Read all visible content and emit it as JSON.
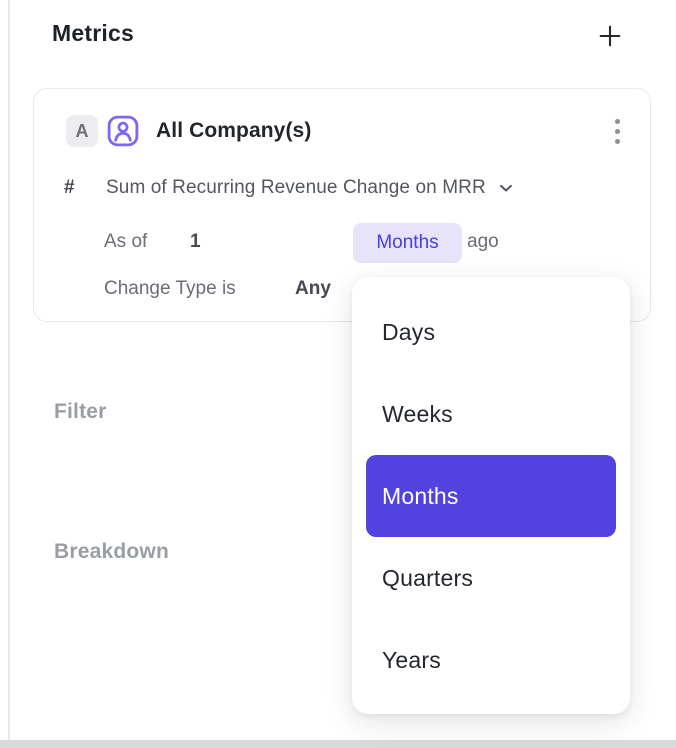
{
  "page": {
    "title": "Metrics",
    "add_button_label": "+"
  },
  "metric_card": {
    "badge": "A",
    "entity": "All Company(s)",
    "metric_type_symbol": "#",
    "metric_label": "Sum of Recurring Revenue Change on MRR",
    "as_of": {
      "prefix": "As of",
      "value": "1",
      "unit": "Months",
      "suffix": "ago"
    },
    "change_type": {
      "label": "Change Type is",
      "value": "Any"
    }
  },
  "unit_dropdown": {
    "options": [
      {
        "label": "Days",
        "selected": false
      },
      {
        "label": "Weeks",
        "selected": false
      },
      {
        "label": "Months",
        "selected": true
      },
      {
        "label": "Quarters",
        "selected": false
      },
      {
        "label": "Years",
        "selected": false
      }
    ]
  },
  "sections": {
    "filter": "Filter",
    "breakdown": "Breakdown"
  },
  "icons": {
    "add": "plus-icon",
    "entity": "person-icon",
    "menu": "kebab-menu-icon",
    "metric_expand": "chevron-down-icon"
  },
  "colors": {
    "accent": "#5243e0",
    "chip_bg": "#e6e3fb",
    "chip_text": "#4c3ce0",
    "icon_purple": "#7a68f5",
    "heading_text": "#1f2227",
    "muted_label": "#9a9ea4"
  }
}
